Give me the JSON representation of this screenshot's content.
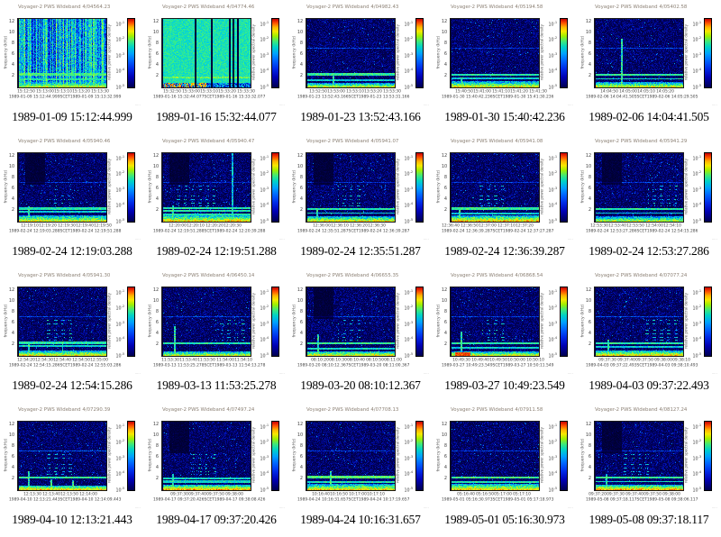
{
  "page": {
    "background": "#ffffff"
  },
  "shared": {
    "ylabel": "frequency (kHz)",
    "yticks": [
      12,
      10,
      8,
      6,
      4,
      2
    ],
    "ylim": [
      0,
      12.6
    ],
    "scet_word": "SCET",
    "colorbar_label": "relative power spectral density",
    "colorbar_ticks": [
      "10^-1",
      "10^-2",
      "10^-3",
      "10^-4",
      "10^-5"
    ],
    "id_mark": "·····",
    "grid": {
      "rows": 4,
      "cols": 5
    },
    "duration_seconds": 48
  },
  "chart_data": [
    {
      "type": "heatmap",
      "title": "Voyager-2 PWS Wideband 4/04564.23",
      "caption": "1989-01-09 15:12:44.999",
      "date": "1989-01-09",
      "t_start": "15:12:44.999",
      "t_end": "15:13:32.999",
      "xticks": [
        "15:12:50",
        "15:13:00",
        "15:13:10",
        "15:13:20",
        "15:13:30"
      ],
      "features": {
        "base": "cyan",
        "seed": 101,
        "lines": [
          {
            "f": 2.4,
            "w": 0.2,
            "v": 0.6
          },
          {
            "f": 1.5,
            "w": 0.18,
            "v": 0.55
          }
        ],
        "botF": 1.0,
        "botV": 0.78
      }
    },
    {
      "type": "heatmap",
      "title": "Voyager-2 PWS Wideband 4/04774.46",
      "caption": "1989-01-16 15:32:44.077",
      "date": "1989-01-16",
      "t_start": "15:32:44.077",
      "t_end": "15:33:32.077",
      "xticks": [
        "15:32:50",
        "15:33:00",
        "15:33:10",
        "15:33:20",
        "15:33:30"
      ],
      "features": {
        "base": "green",
        "seed": 202,
        "lines": [
          {
            "f": 1.9,
            "w": 0.14,
            "v": 0.64
          }
        ],
        "blackCols": [
          0.37,
          0.56,
          0.76,
          0.8,
          0.85
        ],
        "botF": 0.9,
        "botV": 0.8
      }
    },
    {
      "type": "heatmap",
      "title": "Voyager-2 PWS Wideband 4/04982.43",
      "caption": "1989-01-23 13:52:43.166",
      "date": "1989-01-23",
      "t_start": "13:52:43.166",
      "t_end": "13:53:31.166",
      "xticks": [
        "13:52:50",
        "13:53:00",
        "13:53:10",
        "13:53:20",
        "13:53:30"
      ],
      "features": {
        "base": "dark",
        "seed": 303,
        "lines": [
          {
            "f": 7.2,
            "w": 0.08,
            "v": 0.3
          },
          {
            "f": 2.4,
            "w": 0.2,
            "v": 0.58
          },
          {
            "f": 1.3,
            "w": 0.15,
            "v": 0.5
          }
        ],
        "botF": 0.8,
        "botV": 0.8,
        "spikes": [
          {
            "x": 0.3,
            "h": 2.6
          }
        ]
      }
    },
    {
      "type": "heatmap",
      "title": "Voyager-2 PWS Wideband 4/05194.58",
      "caption": "1989-01-30 15:40:42.236",
      "date": "1989-01-30",
      "t_start": "15:40:42.236",
      "t_end": "15:41:30.236",
      "xticks": [
        "15:40:50",
        "15:41:00",
        "15:41:10",
        "15:41:20",
        "15:41:30"
      ],
      "features": {
        "base": "dark",
        "seed": 404,
        "lines": [
          {
            "f": 7.2,
            "w": 0.08,
            "v": 0.28
          },
          {
            "f": 2.4,
            "w": 0.18,
            "v": 0.56
          },
          {
            "f": 1.7,
            "w": 0.15,
            "v": 0.5
          }
        ],
        "botF": 1.1,
        "botV": 0.82,
        "spikes": [
          {
            "x": 0.12,
            "h": 1.8
          }
        ]
      }
    },
    {
      "type": "heatmap",
      "title": "Voyager-2 PWS Wideband 4/05402.58",
      "caption": "1989-02-06 14:04:41.505",
      "date": "1989-02-06",
      "t_start": "14:04:41.505",
      "t_end": "14:05:29.505",
      "xticks": [
        "14:04:50",
        "14:05:00",
        "14:05:10",
        "14:05:20"
      ],
      "features": {
        "base": "dark",
        "seed": 505,
        "lines": [
          {
            "f": 7.2,
            "w": 0.08,
            "v": 0.3
          },
          {
            "f": 2.4,
            "w": 0.18,
            "v": 0.58
          },
          {
            "f": 1.6,
            "w": 0.14,
            "v": 0.52
          }
        ],
        "botF": 1.0,
        "botV": 0.8,
        "spikes": [
          {
            "x": 0.3,
            "h": 9.0
          }
        ]
      }
    },
    {
      "type": "heatmap",
      "title": "Voyager-2 PWS Wideband 4/05940.46",
      "caption": "1989-02-24 12:19:03.288",
      "date": "1989-02-24",
      "t_start": "12:19:03.288",
      "t_end": "12:19:51.288",
      "xticks": [
        "12:19:10",
        "12:19:20",
        "12:19:30",
        "12:19:40",
        "12:19:50"
      ],
      "features": {
        "base": "dark",
        "seed": 606,
        "darkPatch": 1,
        "lines": [
          {
            "f": 7.2,
            "w": 0.08,
            "v": 0.28
          },
          {
            "f": 2.4,
            "w": 0.2,
            "v": 0.55
          },
          {
            "f": 1.8,
            "w": 0.18,
            "v": 0.5
          }
        ],
        "harm": {
          "x0": 0.35,
          "x1": 0.6,
          "p": 0.5
        },
        "botF": 1.2,
        "botV": 0.8,
        "spikes": [
          {
            "x": 0.12,
            "h": 2.8
          }
        ]
      }
    },
    {
      "type": "heatmap",
      "title": "Voyager-2 PWS Wideband 4/05940.47",
      "caption": "1989-02-24 12:19:51.288",
      "date": "1989-02-24",
      "t_start": "12:19:51.288",
      "t_end": "12:20:39.288",
      "xticks": [
        "12:20:00",
        "12:20:10",
        "12:20:20",
        "12:20:30"
      ],
      "features": {
        "base": "dark",
        "seed": 707,
        "darkPatch": 1,
        "lines": [
          {
            "f": 7.2,
            "w": 0.08,
            "v": 0.28
          },
          {
            "f": 2.5,
            "w": 0.15,
            "v": 0.55
          },
          {
            "f": 2.0,
            "w": 0.15,
            "v": 0.55
          },
          {
            "f": 1.4,
            "w": 0.15,
            "v": 0.55
          }
        ],
        "harm": {
          "x0": 0.15,
          "x1": 0.6,
          "p": 0.6
        },
        "botF": 1.2,
        "botV": 0.85,
        "vlines": [
          0.79
        ],
        "spikes": [
          {
            "x": 0.12,
            "h": 3.0
          }
        ]
      }
    },
    {
      "type": "heatmap",
      "title": "Voyager-2 PWS Wideband 4/05941.07",
      "caption": "1989-02-24 12:35:51.287",
      "date": "1989-02-24",
      "t_start": "12:35:51.287",
      "t_end": "12:36:39.287",
      "xticks": [
        "12:36:00",
        "12:36:10",
        "12:36:20",
        "12:36:30"
      ],
      "features": {
        "base": "dark",
        "seed": 808,
        "darkPatch": 1,
        "lines": [
          {
            "f": 7.2,
            "w": 0.08,
            "v": 0.28
          },
          {
            "f": 2.4,
            "w": 0.18,
            "v": 0.56
          },
          {
            "f": 1.6,
            "w": 0.15,
            "v": 0.5
          }
        ],
        "harm": {
          "x0": 0.35,
          "x1": 0.62,
          "p": 0.55
        },
        "botF": 1.0,
        "botV": 0.82,
        "spikes": [
          {
            "x": 0.12,
            "h": 2.5
          }
        ]
      }
    },
    {
      "type": "heatmap",
      "title": "Voyager-2 PWS Wideband 4/05941.08",
      "caption": "1989-02-24 12:36:39.287",
      "date": "1989-02-24",
      "t_start": "12:36:39.287",
      "t_end": "12:37:27.287",
      "xticks": [
        "12:36:40",
        "12:36:50",
        "12:37:00",
        "12:37:10",
        "12:37:20"
      ],
      "features": {
        "base": "dark",
        "seed": 909,
        "lines": [
          {
            "f": 7.2,
            "w": 0.08,
            "v": 0.28
          },
          {
            "f": 2.4,
            "w": 0.2,
            "v": 0.58
          },
          {
            "f": 1.5,
            "w": 0.15,
            "v": 0.5
          }
        ],
        "harm": {
          "x0": 0.3,
          "x1": 0.6,
          "p": 0.7
        },
        "botF": 1.1,
        "botV": 0.88,
        "spikes": [
          {
            "x": 0.1,
            "h": 2.5
          }
        ]
      }
    },
    {
      "type": "heatmap",
      "title": "Voyager-2 PWS Wideband 4/05941.29",
      "caption": "1989-02-24 12:53:27.286",
      "date": "1989-02-24",
      "t_start": "12:53:27.286",
      "t_end": "12:54:15.286",
      "xticks": [
        "12:53:30",
        "12:53:40",
        "12:53:50",
        "12:54:00",
        "12:54:10"
      ],
      "features": {
        "base": "dark",
        "seed": 110,
        "darkPatch": 1,
        "lines": [
          {
            "f": 7.2,
            "w": 0.08,
            "v": 0.3
          },
          {
            "f": 2.4,
            "w": 0.18,
            "v": 0.56
          },
          {
            "f": 1.6,
            "w": 0.14,
            "v": 0.5
          }
        ],
        "harm": {
          "x0": 0.6,
          "x1": 0.95,
          "p": 0.6
        },
        "botF": 1.0,
        "botV": 0.75
      }
    },
    {
      "type": "heatmap",
      "title": "Voyager-2 PWS Wideband 4/05941.30",
      "caption": "1989-02-24 12:54:15.286",
      "date": "1989-02-24",
      "t_start": "12:54:15.286",
      "t_end": "12:55:03.286",
      "xticks": [
        "12:54:20",
        "12:54:30",
        "12:54:40",
        "12:54:50",
        "12:55:00"
      ],
      "features": {
        "base": "dark",
        "seed": 120,
        "lines": [
          {
            "f": 7.2,
            "w": 0.08,
            "v": 0.3
          },
          {
            "f": 2.4,
            "w": 0.2,
            "v": 0.56
          },
          {
            "f": 1.8,
            "w": 0.15,
            "v": 0.52
          }
        ],
        "harm": {
          "x0": 0.3,
          "x1": 0.62,
          "p": 0.6
        },
        "botF": 1.0,
        "botV": 0.82,
        "spikes": [
          {
            "x": 0.12,
            "h": 2.2
          },
          {
            "x": 0.5,
            "h": 2.2
          }
        ]
      }
    },
    {
      "type": "heatmap",
      "title": "Voyager-2 PWS Wideband 4/06450.14",
      "caption": "1989-03-13 11:53:25.278",
      "date": "1989-03-13",
      "t_start": "11:53:25.278",
      "t_end": "11:54:13.278",
      "xticks": [
        "11:53:30",
        "11:53:40",
        "11:53:50",
        "11:54:00",
        "11:54:10"
      ],
      "features": {
        "base": "dark",
        "seed": 130,
        "lines": [
          {
            "f": 7.2,
            "w": 0.09,
            "v": 0.32
          },
          {
            "f": 2.4,
            "w": 0.16,
            "v": 0.55
          }
        ],
        "harm": {
          "x0": 0.6,
          "x1": 0.95,
          "p": 0.55
        },
        "botF": 0.9,
        "botV": 0.78,
        "spikes": [
          {
            "x": 0.14,
            "h": 5.5
          }
        ]
      }
    },
    {
      "type": "heatmap",
      "title": "Voyager-2 PWS Wideband 4/06655.35",
      "caption": "1989-03-20 08:10:12.367",
      "date": "1989-03-20",
      "t_start": "08:10:12.367",
      "t_end": "08:11:00.367",
      "xticks": [
        "08:10:20",
        "08:10:30",
        "08:10:40",
        "08:10:50",
        "08:11:00"
      ],
      "features": {
        "base": "dark",
        "seed": 140,
        "darkPatch": 1,
        "lines": [
          {
            "f": 7.2,
            "w": 0.08,
            "v": 0.3
          },
          {
            "f": 2.4,
            "w": 0.18,
            "v": 0.58
          },
          {
            "f": 1.4,
            "w": 0.14,
            "v": 0.52
          }
        ],
        "harm": {
          "x0": 0.35,
          "x1": 0.62,
          "p": 0.55
        },
        "botF": 0.9,
        "botV": 0.82,
        "spikes": [
          {
            "x": 0.13,
            "h": 4.0
          }
        ]
      }
    },
    {
      "type": "heatmap",
      "title": "Voyager-2 PWS Wideband 4/06868.54",
      "caption": "1989-03-27 10:49:23.549",
      "date": "1989-03-27",
      "t_start": "10:49:23.549",
      "t_end": "10:50:11.549",
      "xticks": [
        "10:49:30",
        "10:49:40",
        "10:49:50",
        "10:50:00",
        "10:50:10"
      ],
      "features": {
        "base": "dark",
        "seed": 150,
        "lines": [
          {
            "f": 7.2,
            "w": 0.08,
            "v": 0.3
          },
          {
            "f": 2.4,
            "w": 0.18,
            "v": 0.56
          },
          {
            "f": 1.5,
            "w": 0.13,
            "v": 0.5
          }
        ],
        "harm": {
          "x0": 0.35,
          "x1": 0.62,
          "p": 0.6
        },
        "botF": 0.9,
        "botV": 0.8,
        "hotL": [
          0.05,
          0.22
        ],
        "spikes": [
          {
            "x": 0.12,
            "h": 4.5
          }
        ]
      }
    },
    {
      "type": "heatmap",
      "title": "Voyager-2 PWS Wideband 4/07077.24",
      "caption": "1989-04-03 09:37:22.493",
      "date": "1989-04-03",
      "t_start": "09:37:22.493",
      "t_end": "09:38:10.493",
      "xticks": [
        "09:37:30",
        "09:37:40",
        "09:37:50",
        "09:38:00",
        "09:38:10"
      ],
      "features": {
        "base": "dark",
        "seed": 160,
        "lines": [
          {
            "f": 7.2,
            "w": 0.09,
            "v": 0.32
          },
          {
            "f": 2.4,
            "w": 0.16,
            "v": 0.56
          },
          {
            "f": 1.7,
            "w": 0.13,
            "v": 0.5
          }
        ],
        "harm": {
          "x0": 0.55,
          "x1": 0.95,
          "p": 0.75
        },
        "botF": 1.0,
        "botV": 0.85,
        "spikes": [
          {
            "x": 0.15,
            "h": 3.0
          }
        ]
      }
    },
    {
      "type": "heatmap",
      "title": "Voyager-2 PWS Wideband 4/07290.39",
      "caption": "1989-04-10 12:13:21.443",
      "date": "1989-04-10",
      "t_start": "12:13:21.443",
      "t_end": "12:14:09.443",
      "xticks": [
        "12:13:30",
        "12:13:40",
        "12:13:50",
        "12:14:00"
      ],
      "features": {
        "base": "dark",
        "seed": 170,
        "lines": [
          {
            "f": 7.2,
            "w": 0.09,
            "v": 0.34
          },
          {
            "f": 2.4,
            "w": 0.18,
            "v": 0.58
          }
        ],
        "harm": {
          "x0": 0.3,
          "x1": 0.62,
          "p": 0.75
        },
        "botF": 0.9,
        "botV": 0.85,
        "spikes": [
          {
            "x": 0.12,
            "h": 3.5
          },
          {
            "x": 0.37,
            "h": 2.0
          },
          {
            "x": 0.62,
            "h": 1.8
          }
        ]
      }
    },
    {
      "type": "heatmap",
      "title": "Voyager-2 PWS Wideband 4/07497.24",
      "caption": "1989-04-17 09:37:20.426",
      "date": "1989-04-17",
      "t_start": "09:37:20.426",
      "t_end": "09:38:08.426",
      "xticks": [
        "09:37:30",
        "09:37:40",
        "09:37:50",
        "09:38:00"
      ],
      "features": {
        "base": "dark",
        "seed": 180,
        "darkPatch": 1,
        "lines": [
          {
            "f": 2.2,
            "w": 0.2,
            "v": 0.52
          },
          {
            "f": 1.6,
            "w": 0.2,
            "v": 0.52
          }
        ],
        "harm": {
          "x0": 0.3,
          "x1": 0.62,
          "p": 0.6
        },
        "botF": 1.0,
        "botV": 0.9,
        "spikes": [
          {
            "x": 0.12,
            "h": 3.0
          }
        ]
      }
    },
    {
      "type": "heatmap",
      "title": "Voyager-2 PWS Wideband 4/07708.13",
      "caption": "1989-04-24 10:16:31.657",
      "date": "1989-04-24",
      "t_start": "10:16:31.657",
      "t_end": "10:17:19.657",
      "xticks": [
        "10:16:40",
        "10:16:50",
        "10:17:00",
        "10:17:10"
      ],
      "features": {
        "base": "dark",
        "seed": 190,
        "lines": [
          {
            "f": 7.2,
            "w": 0.08,
            "v": 0.3
          },
          {
            "f": 2.4,
            "w": 0.22,
            "v": 0.62
          },
          {
            "f": 1.5,
            "w": 0.16,
            "v": 0.55
          }
        ],
        "botF": 1.1,
        "botV": 0.85,
        "spikes": [
          {
            "x": 0.27,
            "h": 3.5
          }
        ]
      }
    },
    {
      "type": "heatmap",
      "title": "Voyager-2 PWS Wideband 4/07911.58",
      "caption": "1989-05-01 05:16:30.973",
      "date": "1989-05-01",
      "t_start": "05:16:30.973",
      "t_end": "05:17:18.973",
      "xticks": [
        "05:16:40",
        "05:16:50",
        "05:17:00",
        "05:17:10"
      ],
      "features": {
        "base": "dark",
        "seed": 210,
        "lines": [
          {
            "f": 7.2,
            "w": 0.08,
            "v": 0.3
          },
          {
            "f": 2.3,
            "w": 0.2,
            "v": 0.6
          },
          {
            "f": 1.5,
            "w": 0.16,
            "v": 0.55
          }
        ],
        "botF": 1.2,
        "botV": 0.85
      }
    },
    {
      "type": "heatmap",
      "title": "Voyager-2 PWS Wideband 4/08127.24",
      "caption": "1989-05-08 09:37:18.117",
      "date": "1989-05-08",
      "t_start": "09:37:18.117",
      "t_end": "09:38:06.117",
      "xticks": [
        "09:37:20",
        "09:37:30",
        "09:37:40",
        "09:37:50",
        "09:38:00"
      ],
      "features": {
        "base": "dark",
        "seed": 220,
        "darkPatch": 1,
        "lines": [
          {
            "f": 7.2,
            "w": 0.08,
            "v": 0.3
          },
          {
            "f": 2.4,
            "w": 0.18,
            "v": 0.58
          },
          {
            "f": 1.6,
            "w": 0.14,
            "v": 0.52
          }
        ],
        "harm": {
          "x0": 0.3,
          "x1": 0.62,
          "p": 0.6
        },
        "botF": 1.0,
        "botV": 0.9,
        "spikes": [
          {
            "x": 0.13,
            "h": 3.0
          }
        ]
      }
    }
  ]
}
